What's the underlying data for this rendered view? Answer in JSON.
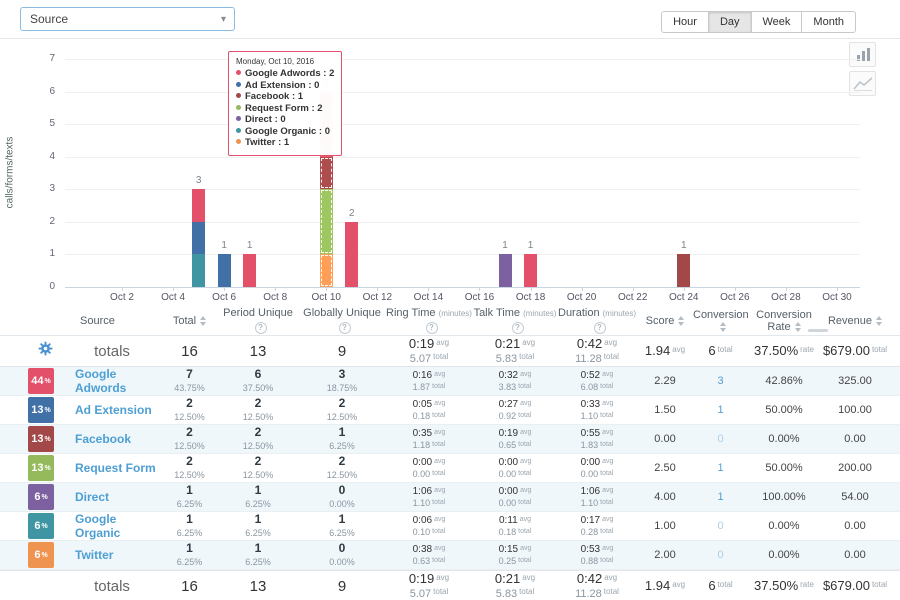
{
  "toolbar": {
    "filter_select": {
      "value": "Source"
    },
    "range_buttons": [
      {
        "label": "Hour",
        "active": false
      },
      {
        "label": "Day",
        "active": true
      },
      {
        "label": "Week",
        "active": false
      },
      {
        "label": "Month",
        "active": false
      }
    ]
  },
  "icons": {
    "caret": "▾",
    "help_bulb": "?"
  },
  "colors": {
    "google_adwords": "#e2506a",
    "ad_extension": "#4170a6",
    "facebook": "#a34848",
    "request_form": "#94ba5c",
    "direct": "#7d60a0",
    "google_organic": "#4095a3",
    "twitter": "#ee9450",
    "link_blue": "#4e9fd4",
    "accent_blue": "#4a90d2"
  },
  "chart_data": {
    "type": "bar",
    "stacked": true,
    "ylabel": "calls/forms/texts",
    "ylim": [
      0,
      7
    ],
    "yticks": [
      0,
      1,
      2,
      3,
      4,
      5,
      6,
      7
    ],
    "x_tick_labels": [
      "Oct 2",
      "Oct 4",
      "Oct 6",
      "Oct 8",
      "Oct 10",
      "Oct 12",
      "Oct 14",
      "Oct 16",
      "Oct 18",
      "Oct 20",
      "Oct 22",
      "Oct 24",
      "Oct 26",
      "Oct 28",
      "Oct 30"
    ],
    "grid": true,
    "bars": [
      {
        "day": 5,
        "label": "3",
        "segments": [
          {
            "series": "google_organic",
            "value": 1
          },
          {
            "series": "ad_extension",
            "value": 1
          },
          {
            "series": "google_adwords",
            "value": 1
          }
        ]
      },
      {
        "day": 6,
        "label": "1",
        "segments": [
          {
            "series": "ad_extension",
            "value": 1
          }
        ]
      },
      {
        "day": 7,
        "label": "1",
        "segments": [
          {
            "series": "google_adwords",
            "value": 1
          }
        ]
      },
      {
        "day": 10,
        "label": "6",
        "highlighted": true,
        "segments": [
          {
            "series": "twitter",
            "value": 1
          },
          {
            "series": "request_form",
            "value": 2
          },
          {
            "series": "facebook",
            "value": 1
          },
          {
            "series": "google_adwords",
            "value": 2
          }
        ]
      },
      {
        "day": 11,
        "label": "2",
        "segments": [
          {
            "series": "google_adwords",
            "value": 2
          }
        ]
      },
      {
        "day": 17,
        "label": "1",
        "segments": [
          {
            "series": "direct",
            "value": 1
          }
        ]
      },
      {
        "day": 18,
        "label": "1",
        "segments": [
          {
            "series": "google_adwords",
            "value": 1
          }
        ]
      },
      {
        "day": 24,
        "label": "1",
        "segments": [
          {
            "series": "facebook",
            "value": 1
          }
        ]
      }
    ],
    "tooltip": {
      "title": "Monday, Oct 10, 2016",
      "items": [
        {
          "label": "Google Adwords",
          "value": "2",
          "series": "google_adwords"
        },
        {
          "label": "Ad Extension",
          "value": "0",
          "series": "ad_extension"
        },
        {
          "label": "Facebook",
          "value": "1",
          "series": "facebook"
        },
        {
          "label": "Request Form",
          "value": "2",
          "series": "request_form"
        },
        {
          "label": "Direct",
          "value": "0",
          "series": "direct"
        },
        {
          "label": "Google Organic",
          "value": "0",
          "series": "google_organic"
        },
        {
          "label": "Twitter",
          "value": "1",
          "series": "twitter"
        }
      ]
    }
  },
  "table": {
    "headers": [
      {
        "label": "",
        "icon": "none"
      },
      {
        "label": "Source",
        "icon": "none"
      },
      {
        "label": "Total",
        "icon": "sort"
      },
      {
        "label": "Period Unique",
        "icon": "bulb"
      },
      {
        "label": "Globally Unique",
        "icon": "bulb"
      },
      {
        "label": "Ring Time",
        "sub": "(minutes)",
        "icon": "bulb"
      },
      {
        "label": "Talk Time",
        "sub": "(minutes)",
        "icon": "bulb"
      },
      {
        "label": "Duration",
        "sub": "(minutes)",
        "icon": "bulb"
      },
      {
        "label": "Score",
        "icon": "sort"
      },
      {
        "label": "Conversion",
        "icon": "sort"
      },
      {
        "label": "Conversion Rate",
        "icon": "sort"
      },
      {
        "label": "Revenue",
        "icon": "sort"
      }
    ],
    "totals": {
      "label": "totals",
      "total": "16",
      "period_unique": "13",
      "globally_unique": "9",
      "ring": {
        "avg": "0:19",
        "total": "5.07"
      },
      "talk": {
        "avg": "0:21",
        "total": "5.83"
      },
      "duration": {
        "avg": "0:42",
        "total": "11.28"
      },
      "score": {
        "value": "1.94",
        "unit": "avg"
      },
      "conversion": {
        "value": "6",
        "unit": "total"
      },
      "rate": {
        "value": "37.50%",
        "unit": "rate"
      },
      "revenue": {
        "value": "$679.00",
        "unit": "total"
      },
      "avg_unit": "avg",
      "total_unit": "total"
    },
    "rows": [
      {
        "badge": "44",
        "series": "google_adwords",
        "name": "Google Adwords",
        "total": [
          "7",
          "43.75%"
        ],
        "period": [
          "6",
          "37.50%"
        ],
        "global": [
          "3",
          "18.75%"
        ],
        "ring": [
          "0:16",
          "1.87"
        ],
        "talk": [
          "0:32",
          "3.83"
        ],
        "duration": [
          "0:52",
          "6.08"
        ],
        "score": "2.29",
        "conversion": "3",
        "rate": "42.86%",
        "revenue": "325.00"
      },
      {
        "badge": "13",
        "series": "ad_extension",
        "name": "Ad Extension",
        "total": [
          "2",
          "12.50%"
        ],
        "period": [
          "2",
          "12.50%"
        ],
        "global": [
          "2",
          "12.50%"
        ],
        "ring": [
          "0:05",
          "0.18"
        ],
        "talk": [
          "0:27",
          "0.92"
        ],
        "duration": [
          "0:33",
          "1.10"
        ],
        "score": "1.50",
        "conversion": "1",
        "rate": "50.00%",
        "revenue": "100.00"
      },
      {
        "badge": "13",
        "series": "facebook",
        "name": "Facebook",
        "total": [
          "2",
          "12.50%"
        ],
        "period": [
          "2",
          "12.50%"
        ],
        "global": [
          "1",
          "6.25%"
        ],
        "ring": [
          "0:35",
          "1.18"
        ],
        "talk": [
          "0:19",
          "0.65"
        ],
        "duration": [
          "0:55",
          "1.83"
        ],
        "score": "0.00",
        "conversion": "0",
        "rate": "0.00%",
        "revenue": "0.00"
      },
      {
        "badge": "13",
        "series": "request_form",
        "name": "Request Form",
        "total": [
          "2",
          "12.50%"
        ],
        "period": [
          "2",
          "12.50%"
        ],
        "global": [
          "2",
          "12.50%"
        ],
        "ring": [
          "0:00",
          "0.00"
        ],
        "talk": [
          "0:00",
          "0.00"
        ],
        "duration": [
          "0:00",
          "0.00"
        ],
        "score": "2.50",
        "conversion": "1",
        "rate": "50.00%",
        "revenue": "200.00"
      },
      {
        "badge": "6",
        "series": "direct",
        "name": "Direct",
        "total": [
          "1",
          "6.25%"
        ],
        "period": [
          "1",
          "6.25%"
        ],
        "global": [
          "0",
          "0.00%"
        ],
        "ring": [
          "1:06",
          "1.10"
        ],
        "talk": [
          "0:00",
          "0.00"
        ],
        "duration": [
          "1:06",
          "1.10"
        ],
        "score": "4.00",
        "conversion": "1",
        "rate": "100.00%",
        "revenue": "54.00"
      },
      {
        "badge": "6",
        "series": "google_organic",
        "name": "Google Organic",
        "total": [
          "1",
          "6.25%"
        ],
        "period": [
          "1",
          "6.25%"
        ],
        "global": [
          "1",
          "6.25%"
        ],
        "ring": [
          "0:06",
          "0.10"
        ],
        "talk": [
          "0:11",
          "0.18"
        ],
        "duration": [
          "0:17",
          "0.28"
        ],
        "score": "1.00",
        "conversion": "0",
        "rate": "0.00%",
        "revenue": "0.00"
      },
      {
        "badge": "6",
        "series": "twitter",
        "name": "Twitter",
        "total": [
          "1",
          "6.25%"
        ],
        "period": [
          "1",
          "6.25%"
        ],
        "global": [
          "0",
          "0.00%"
        ],
        "ring": [
          "0:38",
          "0.63"
        ],
        "talk": [
          "0:15",
          "0.25"
        ],
        "duration": [
          "0:53",
          "0.88"
        ],
        "score": "2.00",
        "conversion": "0",
        "rate": "0.00%",
        "revenue": "0.00"
      }
    ]
  }
}
